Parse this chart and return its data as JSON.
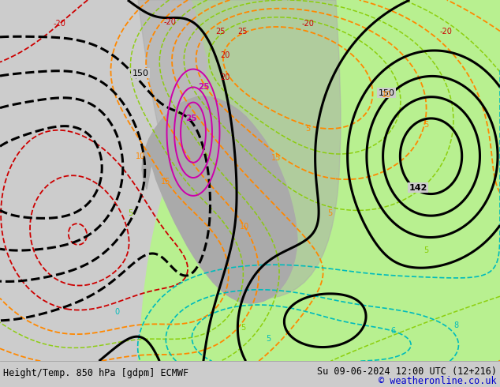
{
  "title_left": "Height/Temp. 850 hPa [gdpm] ECMWF",
  "title_right": "Su 09-06-2024 12:00 UTC (12+216)",
  "copyright": "© weatheronline.co.uk",
  "bg_color": "#cccccc",
  "land_green_color": "#b8f090",
  "land_gray_color": "#aaaaaa",
  "ocean_color": "#cccccc",
  "footer_bg": "#e8e8e8",
  "footer_text_color": "#000000",
  "copyright_color": "#0000cc",
  "orange_color": "#ff8800",
  "red_color": "#cc0000",
  "cyan_color": "#00bbbb",
  "green_color": "#88cc00",
  "magenta_color": "#cc00aa",
  "black_color": "#000000",
  "fig_width": 6.34,
  "fig_height": 4.9,
  "dpi": 100
}
